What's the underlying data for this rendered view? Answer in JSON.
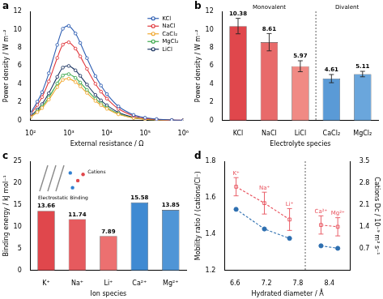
{
  "chart_data": [
    {
      "panel": "a",
      "type": "line",
      "xlabel": "External resistance / Ω",
      "ylabel": "Power density / W m⁻²",
      "log": "x",
      "x": [
        100,
        150,
        200,
        300,
        500,
        700,
        1000,
        1500,
        2000,
        3000,
        5000,
        7000,
        10000,
        20000,
        50000,
        100000,
        200000,
        500000,
        1000000
      ],
      "xlim": [
        100,
        1000000
      ],
      "xticks": [
        {
          "value": 100,
          "label": "10²"
        },
        {
          "value": 1000,
          "label": "10³"
        },
        {
          "value": 10000,
          "label": "10⁴"
        },
        {
          "value": 100000,
          "label": "10⁵"
        },
        {
          "value": 1000000,
          "label": "10⁶"
        }
      ],
      "ylim": [
        0,
        12
      ],
      "yticks": [
        0,
        2,
        4,
        6,
        8,
        10,
        12
      ],
      "grid": false,
      "legend": "upper right",
      "series": [
        {
          "name": "KCl",
          "color": "#2f5fb3",
          "marker": "open_circle",
          "line_style": "solid",
          "values": [
            0.83,
            2.08,
            3.12,
            5.2,
            8.32,
            10.09,
            10.4,
            9.57,
            8.53,
            6.86,
            4.89,
            3.85,
            2.91,
            1.56,
            0.62,
            0.31,
            0.16,
            0.06,
            0.03
          ]
        },
        {
          "name": "NaCl",
          "color": "#e0393e",
          "marker": "open_circle",
          "line_style": "solid",
          "values": [
            0.69,
            1.72,
            2.58,
            4.3,
            6.88,
            8.34,
            8.6,
            7.91,
            7.05,
            5.68,
            4.04,
            3.18,
            2.41,
            1.29,
            0.52,
            0.26,
            0.13,
            0.05,
            0.03
          ]
        },
        {
          "name": "CaCl₂",
          "color": "#f0a830",
          "marker": "open_circle",
          "line_style": "solid",
          "values": [
            0.37,
            0.92,
            1.38,
            2.3,
            3.68,
            4.46,
            4.6,
            4.23,
            3.77,
            3.04,
            2.16,
            1.7,
            1.29,
            0.69,
            0.28,
            0.14,
            0.07,
            0.03,
            0.01
          ]
        },
        {
          "name": "MgCl₂",
          "color": "#3aa84a",
          "marker": "open_circle",
          "line_style": "solid",
          "values": [
            0.41,
            1.02,
            1.53,
            2.55,
            4.08,
            4.95,
            5.1,
            4.69,
            4.18,
            3.37,
            2.4,
            1.89,
            1.43,
            0.77,
            0.31,
            0.15,
            0.08,
            0.03,
            0.02
          ]
        },
        {
          "name": "LiCl",
          "color": "#1f3864",
          "marker": "open_circle",
          "line_style": "solid",
          "values": [
            0.48,
            1.2,
            1.8,
            3.0,
            4.8,
            5.82,
            6.0,
            5.52,
            4.92,
            3.96,
            2.82,
            2.22,
            1.68,
            0.9,
            0.36,
            0.18,
            0.09,
            0.04,
            0.02
          ]
        }
      ]
    },
    {
      "panel": "b",
      "type": "bar",
      "xlabel": "Electrolyte species",
      "ylabel": "Power density / W m⁻²",
      "categories": [
        "KCl",
        "NaCl",
        "LiCl",
        "CaCl₂",
        "MgCl₂"
      ],
      "values": [
        10.38,
        8.61,
        5.97,
        4.61,
        5.11
      ],
      "errors": [
        0.85,
        0.95,
        0.6,
        0.45,
        0.3
      ],
      "colors": [
        "#e0474c",
        "#e86a6a",
        "#f08a84",
        "#5a9ad6",
        "#6aa6dc"
      ],
      "data_labels": true,
      "ylim": [
        0,
        12
      ],
      "yticks": [
        0,
        2,
        4,
        6,
        8,
        10,
        12
      ],
      "grid": false,
      "groups": [
        {
          "label": "Monovalent",
          "categories": [
            "KCl",
            "NaCl",
            "LiCl"
          ]
        },
        {
          "label": "Divalent",
          "categories": [
            "CaCl₂",
            "MgCl₂"
          ]
        }
      ]
    },
    {
      "panel": "c",
      "type": "bar",
      "xlabel": "Ion species",
      "ylabel": "Binding energy / kJ mol⁻¹",
      "categories": [
        "K⁺",
        "Na⁺",
        "Li⁺",
        "Ca²⁺",
        "Mg²⁺"
      ],
      "values": [
        13.66,
        11.74,
        7.89,
        15.58,
        13.85
      ],
      "colors": [
        "#e0474c",
        "#e65a5e",
        "#ec7070",
        "#3f8ad2",
        "#4f95d6"
      ],
      "data_labels": true,
      "ylim": [
        0,
        25
      ],
      "yticks": [
        0,
        5,
        10,
        15,
        20,
        25
      ],
      "grid": false,
      "annotations": [
        "Cations",
        "Electrostatic Binding"
      ]
    },
    {
      "panel": "d",
      "type": "line",
      "xlabel": "Hydrated diameter / Å",
      "ylabel": "Mobility ratio / (cations/Cl⁻)",
      "y2label": "Cations Dc / 10⁻⁹ m² s⁻¹",
      "xlim": [
        6.4,
        8.8
      ],
      "xticks": [
        6.6,
        7.2,
        7.8,
        8.4
      ],
      "ylim": [
        1.2,
        1.8
      ],
      "yticks": [
        1.2,
        1.4,
        1.6,
        1.8
      ],
      "y2lim": [
        0,
        3.5
      ],
      "y2ticks": [
        0.7,
        1.4,
        2.1,
        2.8,
        3.5
      ],
      "grid": false,
      "series": [
        {
          "color": "#e8505b",
          "marker": "open_square",
          "line_style": "dashed",
          "axis": "y",
          "x": [
            6.62,
            7.16,
            7.64
          ],
          "values": [
            1.66,
            1.57,
            1.48
          ],
          "errors": [
            0.05,
            0.06,
            0.06
          ],
          "point_labels": [
            "K⁺",
            "Na⁺",
            "Li⁺"
          ]
        },
        {
          "color": "#e8505b",
          "marker": "open_square",
          "line_style": "dashed",
          "axis": "y",
          "x": [
            8.24,
            8.56
          ],
          "values": [
            1.45,
            1.44
          ],
          "errors": [
            0.05,
            0.05
          ],
          "point_labels": [
            "Ca²⁺",
            "Mg²⁺"
          ]
        },
        {
          "color": "#2e6fb0",
          "marker": "circle",
          "line_style": "dashed",
          "axis": "y2",
          "x": [
            6.62,
            7.16,
            7.64
          ],
          "values": [
            1.96,
            1.33,
            1.03
          ]
        },
        {
          "color": "#2e6fb0",
          "marker": "circle",
          "line_style": "dashed",
          "axis": "y2",
          "x": [
            8.24,
            8.56
          ],
          "values": [
            0.79,
            0.71
          ]
        }
      ]
    }
  ]
}
